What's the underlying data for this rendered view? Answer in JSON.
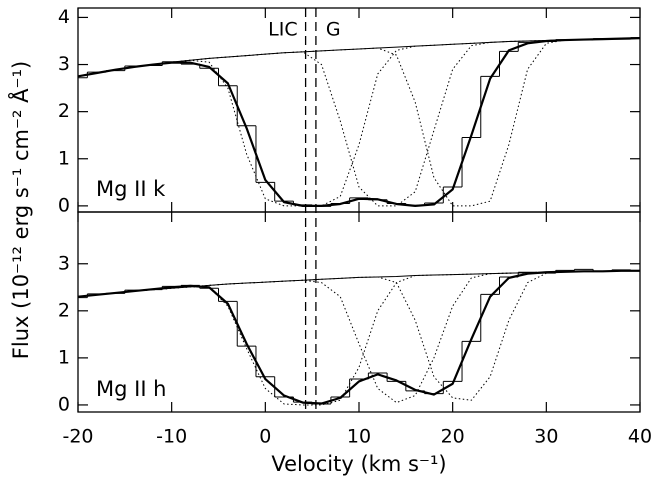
{
  "chart_data": [
    {
      "type": "line",
      "label": "Mg II k",
      "ylabel": "Flux (10⁻¹² erg s⁻¹ cm⁻² Å⁻¹)",
      "markers": [
        {
          "label": "LIC",
          "x": 4.3
        },
        {
          "label": "G",
          "x": 5.4
        }
      ],
      "xlim": [
        -20,
        40
      ],
      "xticks": [
        -20,
        -10,
        0,
        10,
        20,
        30,
        40
      ],
      "xtick_labels": false,
      "ylim": [
        -0.13,
        4.2
      ],
      "yticks": [
        0,
        1,
        2,
        3,
        4
      ],
      "x": [
        -20,
        -18,
        -16,
        -14,
        -12,
        -10,
        -8,
        -6,
        -4,
        -2,
        0,
        2,
        4,
        6,
        8,
        10,
        12,
        14,
        16,
        18,
        20,
        22,
        24,
        26,
        28,
        30,
        32,
        34,
        36,
        38,
        40
      ],
      "series": [
        {
          "style": "thin",
          "color": "#000000",
          "values": [
            2.75,
            2.82,
            2.89,
            2.95,
            3.0,
            3.05,
            3.09,
            3.13,
            3.16,
            3.19,
            3.22,
            3.25,
            3.27,
            3.29,
            3.31,
            3.33,
            3.35,
            3.37,
            3.39,
            3.41,
            3.43,
            3.45,
            3.47,
            3.49,
            3.5,
            3.51,
            3.52,
            3.53,
            3.54,
            3.55,
            3.56
          ]
        },
        {
          "style": "histogram",
          "color": "#000000",
          "values": [
            2.72,
            2.84,
            2.87,
            2.97,
            2.98,
            3.06,
            3.01,
            2.92,
            2.55,
            1.7,
            0.5,
            0.1,
            0.02,
            -0.01,
            0.05,
            0.17,
            0.13,
            0.05,
            0.01,
            0.06,
            0.4,
            1.45,
            2.75,
            3.28,
            3.47,
            3.49,
            3.53,
            3.52,
            3.55,
            3.54,
            3.57
          ]
        },
        {
          "style": "thick",
          "color": "#000000",
          "values": [
            2.75,
            2.82,
            2.89,
            2.95,
            3.0,
            3.04,
            3.04,
            2.95,
            2.6,
            1.65,
            0.55,
            0.08,
            0.0,
            0.0,
            0.04,
            0.15,
            0.14,
            0.04,
            0.0,
            0.03,
            0.35,
            1.5,
            2.7,
            3.3,
            3.45,
            3.5,
            3.52,
            3.53,
            3.54,
            3.55,
            3.56
          ]
        },
        {
          "style": "dotted",
          "color": "#000000",
          "values": [
            2.75,
            2.82,
            2.89,
            2.95,
            3.0,
            3.05,
            3.09,
            3.05,
            2.5,
            1.1,
            0.15,
            0.0,
            0.0,
            0.0,
            0.2,
            1.3,
            2.8,
            3.3,
            3.39,
            3.41,
            3.43,
            3.45,
            3.47,
            3.49,
            3.5,
            3.51,
            3.52,
            3.53,
            3.54,
            3.55,
            3.56
          ]
        },
        {
          "style": "dotted",
          "color": "#000000",
          "values": [
            2.75,
            2.82,
            2.89,
            2.95,
            3.0,
            3.05,
            3.09,
            3.13,
            3.16,
            3.19,
            3.22,
            3.25,
            3.27,
            3.0,
            1.8,
            0.4,
            0.0,
            0.0,
            0.3,
            1.6,
            2.9,
            3.4,
            3.47,
            3.49,
            3.5,
            3.51,
            3.52,
            3.53,
            3.54,
            3.55,
            3.56
          ]
        },
        {
          "style": "dotted",
          "color": "#000000",
          "values": [
            2.75,
            2.82,
            2.89,
            2.95,
            3.0,
            3.05,
            3.09,
            3.13,
            3.16,
            3.19,
            3.22,
            3.25,
            3.27,
            3.29,
            3.31,
            3.33,
            3.35,
            3.2,
            2.2,
            0.6,
            0.0,
            0.0,
            0.1,
            1.3,
            2.9,
            3.45,
            3.52,
            3.53,
            3.54,
            3.55,
            3.56
          ]
        }
      ]
    },
    {
      "type": "line",
      "label": "Mg II h",
      "xlabel": "Velocity (km s⁻¹)",
      "xlim": [
        -20,
        40
      ],
      "xticks": [
        -20,
        -10,
        0,
        10,
        20,
        30,
        40
      ],
      "xtick_labels": true,
      "ylim": [
        -0.15,
        4.1
      ],
      "yticks": [
        0,
        1,
        2,
        3
      ],
      "x": [
        -20,
        -18,
        -16,
        -14,
        -12,
        -10,
        -8,
        -6,
        -4,
        -2,
        0,
        2,
        4,
        6,
        8,
        10,
        12,
        14,
        16,
        18,
        20,
        22,
        24,
        26,
        28,
        30,
        32,
        34,
        36,
        38,
        40
      ],
      "series": [
        {
          "style": "thin",
          "color": "#000000",
          "values": [
            2.3,
            2.34,
            2.38,
            2.42,
            2.45,
            2.48,
            2.51,
            2.54,
            2.57,
            2.59,
            2.61,
            2.63,
            2.65,
            2.67,
            2.69,
            2.71,
            2.72,
            2.73,
            2.75,
            2.76,
            2.77,
            2.78,
            2.79,
            2.8,
            2.81,
            2.82,
            2.83,
            2.84,
            2.84,
            2.85,
            2.85
          ]
        },
        {
          "style": "histogram",
          "color": "#000000",
          "values": [
            2.28,
            2.36,
            2.37,
            2.44,
            2.45,
            2.52,
            2.54,
            2.48,
            2.2,
            1.25,
            0.6,
            0.17,
            0.06,
            0.02,
            0.17,
            0.55,
            0.68,
            0.5,
            0.3,
            0.24,
            0.5,
            1.35,
            2.35,
            2.72,
            2.82,
            2.8,
            2.86,
            2.88,
            2.84,
            2.87,
            2.86
          ]
        },
        {
          "style": "thick",
          "color": "#000000",
          "values": [
            2.3,
            2.34,
            2.38,
            2.42,
            2.46,
            2.5,
            2.53,
            2.5,
            2.15,
            1.3,
            0.55,
            0.2,
            0.05,
            0.03,
            0.15,
            0.5,
            0.65,
            0.52,
            0.32,
            0.22,
            0.45,
            1.4,
            2.3,
            2.7,
            2.79,
            2.82,
            2.83,
            2.84,
            2.84,
            2.85,
            2.85
          ]
        },
        {
          "style": "dotted",
          "color": "#000000",
          "values": [
            2.3,
            2.34,
            2.38,
            2.42,
            2.45,
            2.48,
            2.51,
            2.5,
            2.1,
            1.2,
            0.35,
            0.02,
            0.0,
            0.0,
            0.1,
            0.8,
            2.0,
            2.6,
            2.75,
            2.76,
            2.77,
            2.78,
            2.79,
            2.8,
            2.81,
            2.82,
            2.83,
            2.84,
            2.84,
            2.85,
            2.85
          ]
        },
        {
          "style": "dotted",
          "color": "#000000",
          "values": [
            2.3,
            2.34,
            2.38,
            2.42,
            2.45,
            2.48,
            2.51,
            2.54,
            2.57,
            2.59,
            2.61,
            2.63,
            2.65,
            2.6,
            2.3,
            1.3,
            0.35,
            0.05,
            0.2,
            1.0,
            2.1,
            2.7,
            2.79,
            2.8,
            2.81,
            2.82,
            2.83,
            2.84,
            2.84,
            2.85,
            2.85
          ]
        },
        {
          "style": "dotted",
          "color": "#000000",
          "values": [
            2.3,
            2.34,
            2.38,
            2.42,
            2.45,
            2.48,
            2.51,
            2.54,
            2.57,
            2.59,
            2.61,
            2.63,
            2.65,
            2.67,
            2.69,
            2.71,
            2.72,
            2.6,
            1.8,
            0.6,
            0.15,
            0.1,
            0.6,
            1.8,
            2.6,
            2.8,
            2.83,
            2.84,
            2.84,
            2.85,
            2.85
          ]
        }
      ]
    }
  ]
}
